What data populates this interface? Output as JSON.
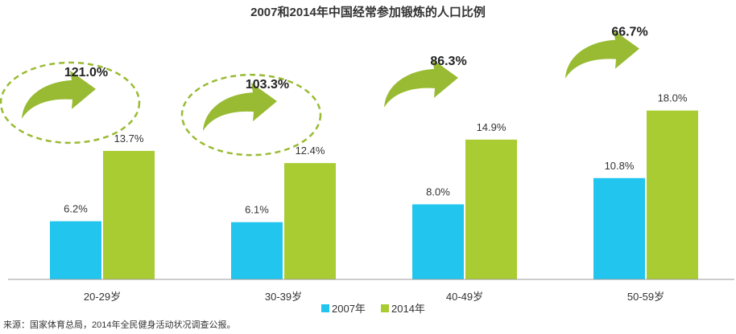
{
  "chart_data": {
    "type": "bar",
    "title": "2007和2014年中国经常参加锻炼的人口比例",
    "categories": [
      "20-29岁",
      "30-39岁",
      "40-49岁",
      "50-59岁"
    ],
    "series": [
      {
        "name": "2007年",
        "color": "#21C5EE",
        "values": [
          6.2,
          6.1,
          8.0,
          10.8
        ],
        "labels": [
          "6.2%",
          "6.1%",
          "8.0%",
          "10.8%"
        ]
      },
      {
        "name": "2014年",
        "color": "#AACC33",
        "values": [
          13.7,
          12.4,
          14.9,
          18.0
        ],
        "labels": [
          "13.7%",
          "12.4%",
          "14.9%",
          "18.0%"
        ]
      }
    ],
    "growth": [
      {
        "label": "121.0%",
        "highlighted": true
      },
      {
        "label": "103.3%",
        "highlighted": true
      },
      {
        "label": "86.3%",
        "highlighted": false
      },
      {
        "label": "66.7%",
        "highlighted": false
      }
    ],
    "ylim": [
      0,
      19
    ],
    "grid": false,
    "legend": "bottom-center",
    "arrow_color": "#99BB33",
    "source": "来源：国家体育总局，2014年全民健身活动状况调查公报。"
  }
}
